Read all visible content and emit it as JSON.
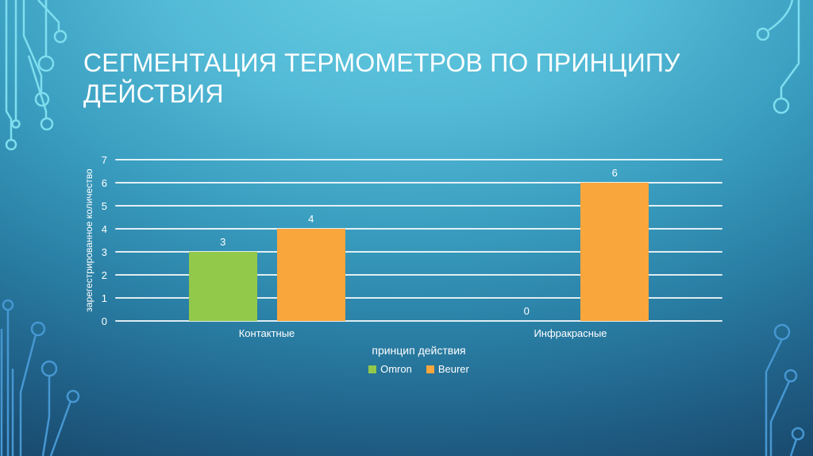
{
  "slide": {
    "title": "СЕГМЕНТАЦИЯ ТЕРМОМЕТРОВ ПО ПРИНЦИПУ ДЕЙСТВИЯ"
  },
  "colors": {
    "title_text": "#ffffff",
    "chart_text": "#ffffff",
    "gridline": "#ffffff",
    "background_top": "#67cee3",
    "background_bottom": "#132c4e",
    "circuit_trace_light": "#7fdeee",
    "circuit_trace_dark": "#4697d2"
  },
  "chart_data": {
    "type": "bar",
    "title": "",
    "categories": [
      "Контактные",
      "Инфракрасные"
    ],
    "series": [
      {
        "name": "Omron",
        "color": "#92c94a",
        "values": [
          3,
          0
        ]
      },
      {
        "name": "Beurer",
        "color": "#f9a63d",
        "values": [
          4,
          6
        ]
      }
    ],
    "xlabel": "принцип действия",
    "ylabel": "зарегестрированное количество",
    "ylim": [
      0,
      7
    ],
    "ytick_step": 1,
    "grid": true,
    "data_labels": true,
    "legend_position": "bottom"
  }
}
